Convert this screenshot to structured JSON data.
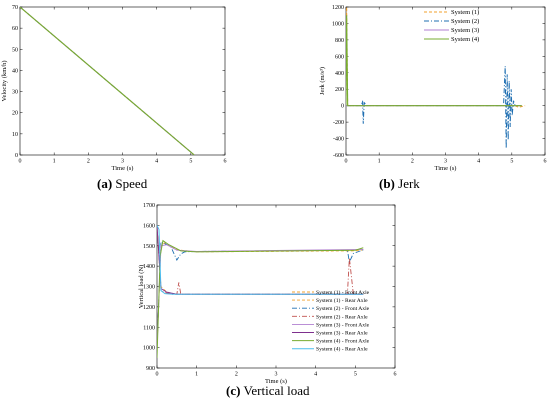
{
  "figure": {
    "captions": [
      {
        "letter": "(a)",
        "text": " Speed"
      },
      {
        "letter": "(b)",
        "text": " Jerk"
      },
      {
        "letter": "(c)",
        "text": " Vertical load"
      }
    ]
  },
  "colors": {
    "system1": "#f2a12e",
    "system2": "#1f6fb2",
    "system3": "#b17fd0",
    "system4": "#77ac30",
    "rear1": "#f2a12e",
    "rear2": "#c0504d",
    "rear3": "#7e2f8e",
    "front4": "#77ac30",
    "rear4": "#4dbeee"
  },
  "chart_data": [
    {
      "id": "speed",
      "type": "line",
      "xlabel": "Time (s)",
      "ylabel": "Velocity (km/h)",
      "xlim": [
        0,
        6
      ],
      "ylim": [
        0,
        70
      ],
      "xticks": [
        0,
        1,
        2,
        3,
        4,
        5,
        6
      ],
      "yticks": [
        0,
        10,
        20,
        30,
        40,
        50,
        60,
        70
      ],
      "legend_position": "top-right",
      "series": [
        {
          "name": "System (1)",
          "x": [
            0,
            5.1
          ],
          "y": [
            70,
            0
          ]
        },
        {
          "name": "System (2)",
          "x": [
            0,
            5.1
          ],
          "y": [
            70,
            0
          ]
        },
        {
          "name": "System (3)",
          "x": [
            0,
            5.1
          ],
          "y": [
            70,
            0
          ]
        },
        {
          "name": "System (4)",
          "x": [
            0,
            5.1
          ],
          "y": [
            70,
            0
          ]
        }
      ]
    },
    {
      "id": "jerk",
      "type": "line",
      "xlabel": "Time (s)",
      "ylabel": "Jerk (m/s³)",
      "xlim": [
        0,
        6
      ],
      "ylim": [
        -600,
        1200
      ],
      "xticks": [
        0,
        1,
        2,
        3,
        4,
        5,
        6
      ],
      "yticks": [
        -600,
        -400,
        -200,
        0,
        200,
        400,
        600,
        800,
        1000,
        1200
      ],
      "legend_position": "top-right",
      "series": [
        {
          "name": "System (1)",
          "x": [
            0,
            0.02,
            0.05,
            5.0,
            5.1,
            5.2,
            5.4
          ],
          "y": [
            0,
            1200,
            0,
            0,
            0,
            -20,
            0
          ]
        },
        {
          "name": "System (2)",
          "x": [
            0,
            0.45,
            0.5,
            0.52,
            0.55,
            0.6,
            4.75,
            4.8,
            4.83,
            4.86,
            4.89,
            4.92,
            4.95,
            4.98,
            5.01,
            5.05,
            5.1,
            5.2
          ],
          "y": [
            0,
            0,
            60,
            -220,
            50,
            0,
            0,
            480,
            -520,
            380,
            -420,
            300,
            -260,
            200,
            -120,
            60,
            0,
            0
          ]
        },
        {
          "name": "System (3)",
          "x": [
            0,
            5.1,
            5.3
          ],
          "y": [
            0,
            0,
            0
          ]
        },
        {
          "name": "System (4)",
          "x": [
            0,
            0.02,
            0.05,
            5.1,
            5.3
          ],
          "y": [
            0,
            1100,
            0,
            0,
            0
          ]
        }
      ]
    },
    {
      "id": "vertical_load",
      "type": "line",
      "xlabel": "Time (s)",
      "ylabel": "Vertical load (N)",
      "xlim": [
        0,
        6
      ],
      "ylim": [
        900,
        1700
      ],
      "xticks": [
        0,
        1,
        2,
        3,
        4,
        5,
        6
      ],
      "yticks": [
        900,
        1000,
        1100,
        1200,
        1300,
        1400,
        1500,
        1600,
        1700
      ],
      "legend_position": "bottom-right",
      "series": [
        {
          "name": "System (1) - Front Axle",
          "x": [
            0,
            0.1,
            0.2,
            0.3,
            0.5,
            1.0,
            5.0,
            5.2
          ],
          "y": [
            1000,
            1500,
            1515,
            1500,
            1480,
            1470,
            1475,
            1480
          ]
        },
        {
          "name": "System (1) - Rear Axle",
          "x": [
            0,
            0.1,
            0.2,
            0.3,
            0.5,
            1.0,
            5.0,
            5.2
          ],
          "y": [
            1600,
            1300,
            1280,
            1270,
            1262,
            1262,
            1262,
            1262
          ]
        },
        {
          "name": "System (2) - Front Axle",
          "x": [
            0,
            0.1,
            0.2,
            0.35,
            0.5,
            0.6,
            0.7,
            1.0,
            4.8,
            4.85,
            4.95,
            5.2
          ],
          "y": [
            1000,
            1520,
            1510,
            1495,
            1430,
            1460,
            1470,
            1472,
            1478,
            1420,
            1462,
            1480
          ]
        },
        {
          "name": "System (2) - Rear Axle",
          "x": [
            0,
            0.1,
            0.2,
            0.4,
            0.5,
            0.55,
            0.6,
            1.0,
            4.8,
            4.85,
            4.95,
            5.2
          ],
          "y": [
            1600,
            1280,
            1270,
            1262,
            1262,
            1320,
            1262,
            1262,
            1262,
            1440,
            1262,
            1262
          ]
        },
        {
          "name": "System (3) - Front Axle",
          "x": [
            0,
            0.1,
            0.25,
            0.5,
            1.0,
            5.2
          ],
          "y": [
            1000,
            1500,
            1505,
            1478,
            1472,
            1482
          ]
        },
        {
          "name": "System (3) - Rear Axle",
          "x": [
            0,
            0.1,
            0.25,
            0.5,
            1.0,
            5.2
          ],
          "y": [
            1600,
            1290,
            1272,
            1262,
            1262,
            1262
          ]
        },
        {
          "name": "System (4) - Front Axle",
          "x": [
            0,
            0.08,
            0.15,
            0.3,
            0.6,
            1.0,
            5.0,
            5.2
          ],
          "y": [
            950,
            1450,
            1525,
            1505,
            1475,
            1470,
            1478,
            1490
          ]
        },
        {
          "name": "System (4) - Rear Axle",
          "x": [
            0,
            0.05,
            0.1,
            0.2,
            0.4,
            0.8,
            5.2
          ],
          "y": [
            1600,
            1580,
            1280,
            1265,
            1262,
            1262,
            1262
          ]
        }
      ]
    }
  ]
}
